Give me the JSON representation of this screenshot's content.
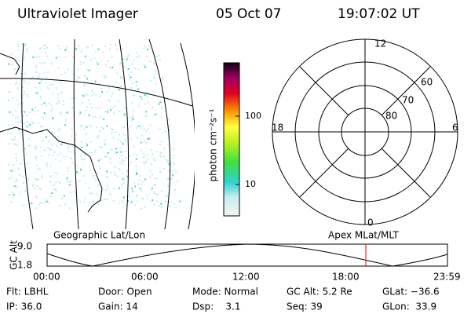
{
  "header": {
    "title": "Ultraviolet Imager",
    "date": "05 Oct 07",
    "time": "19:07:02 UT"
  },
  "colorbar": {
    "label": "photon cm⁻²s⁻¹",
    "ticks": [
      "100",
      "10"
    ]
  },
  "polar": {
    "top": "12",
    "left": "18",
    "right": "6",
    "bottom": "0",
    "rings": [
      "60",
      "70",
      "80"
    ]
  },
  "timeline": {
    "left_title": "Geographic Lat/Lon",
    "right_title": "Apex MLat/MLT",
    "axis_label": "GC Alt",
    "y_labels": [
      "9.0",
      "1.8"
    ],
    "x_labels": [
      "00:00",
      "06:00",
      "12:00",
      "18:00",
      "23:59"
    ]
  },
  "footer": {
    "rows": [
      [
        "Flt: LBHL",
        "Door: Open",
        "Mode: Normal",
        "GC Alt: 5.2 Re",
        "GLat: −36.6"
      ],
      [
        "IP: 36.0",
        "Gain: 14",
        "Dsp:    3.1",
        "Seq: 39",
        "GLon:  33.9"
      ]
    ]
  }
}
